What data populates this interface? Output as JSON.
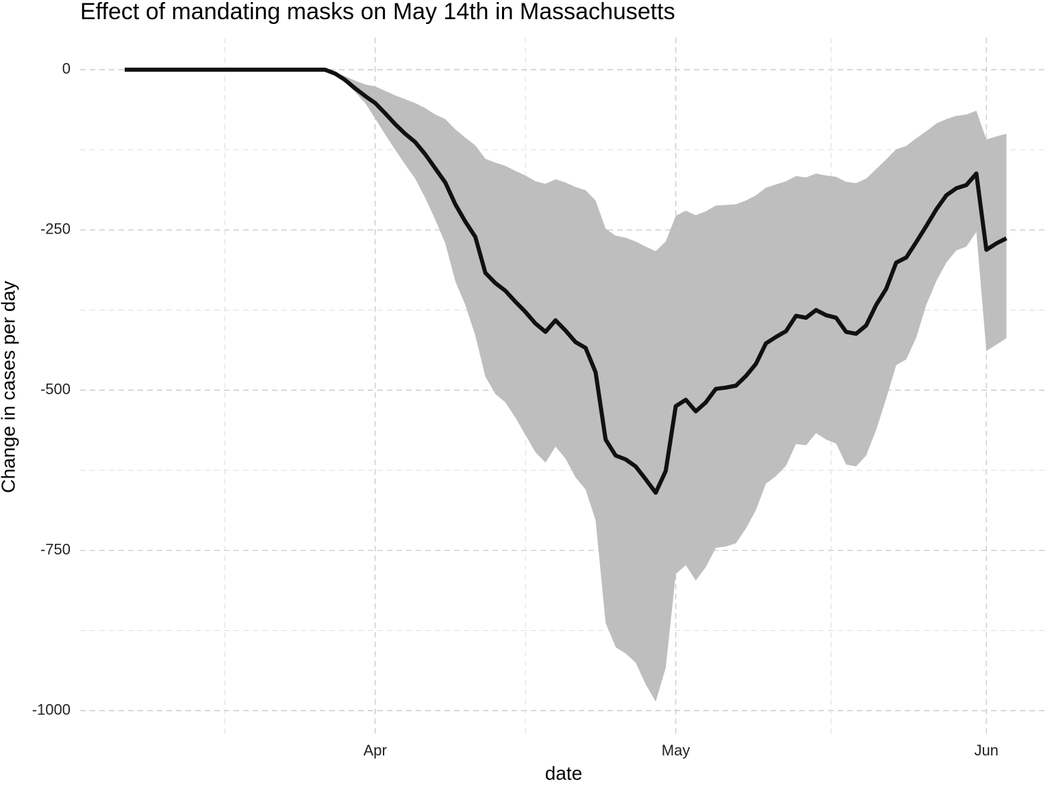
{
  "chart_data": {
    "type": "line",
    "title": "Effect of mandating masks on May 14th in Massachusetts",
    "x_label": "date",
    "y_label": "Change in cases per day",
    "categories": [
      null,
      null,
      null,
      null,
      null,
      null,
      null,
      null,
      null,
      null,
      null,
      null,
      null,
      null,
      null,
      null,
      null,
      null,
      null,
      null,
      null,
      null,
      null,
      null,
      null,
      "Apr",
      null,
      null,
      null,
      null,
      null,
      null,
      null,
      null,
      null,
      null,
      null,
      null,
      null,
      null,
      null,
      null,
      null,
      null,
      null,
      null,
      null,
      null,
      null,
      null,
      null,
      null,
      null,
      null,
      null,
      "May",
      null,
      null,
      null,
      null,
      null,
      null,
      null,
      null,
      null,
      null,
      null,
      null,
      null,
      null,
      null,
      null,
      null,
      null,
      null,
      null,
      null,
      null,
      null,
      null,
      null,
      null,
      null,
      null,
      null,
      null,
      "Jun",
      null,
      null
    ],
    "series": [
      {
        "color": "#111111",
        "values": [
          0,
          0,
          0,
          0,
          0,
          0,
          0,
          0,
          0,
          0,
          0,
          0,
          0,
          0,
          0,
          0,
          0,
          0,
          0,
          0,
          0,
          -6,
          -16,
          -29,
          -41,
          -52,
          -68,
          -85,
          -100,
          -113,
          -132,
          -154,
          -176,
          -210,
          -237,
          -261,
          -317,
          -333,
          -345,
          -362,
          -378,
          -396,
          -409,
          -391,
          -407,
          -425,
          -434,
          -472,
          -577,
          -602,
          -608,
          -619,
          -639,
          -660,
          -626,
          -525,
          -515,
          -533,
          -519,
          -498,
          -496,
          -493,
          -478,
          -459,
          -427,
          -417,
          -408,
          -384,
          -387,
          -375,
          -383,
          -387,
          -409,
          -412,
          -399,
          -367,
          -342,
          -301,
          -293,
          -269,
          -244,
          -218,
          -196,
          -185,
          -180,
          -162,
          -281,
          -271,
          -263
        ]
      }
    ],
    "band": {
      "color": "#bebebe",
      "upper": [
        0,
        0,
        0,
        0,
        0,
        0,
        0,
        0,
        0,
        0,
        0,
        0,
        0,
        0,
        0,
        0,
        0,
        0,
        0,
        0,
        0,
        -4,
        -10,
        -17,
        -23,
        -26,
        -33,
        -40,
        -46,
        -52,
        -60,
        -70,
        -77,
        -93,
        -106,
        -118,
        -139,
        -145,
        -150,
        -158,
        -165,
        -174,
        -178,
        -171,
        -176,
        -183,
        -188,
        -204,
        -248,
        -259,
        -262,
        -268,
        -276,
        -283,
        -268,
        -228,
        -220,
        -227,
        -221,
        -212,
        -211,
        -210,
        -204,
        -196,
        -184,
        -179,
        -174,
        -166,
        -168,
        -162,
        -165,
        -167,
        -175,
        -177,
        -170,
        -155,
        -140,
        -124,
        -119,
        -107,
        -96,
        -84,
        -77,
        -72,
        -70,
        -64,
        -109,
        -104,
        -100
      ],
      "lower": [
        0,
        0,
        0,
        0,
        0,
        0,
        0,
        0,
        0,
        0,
        0,
        0,
        0,
        0,
        0,
        0,
        0,
        0,
        0,
        0,
        0,
        -8,
        -20,
        -35,
        -52,
        -76,
        -101,
        -125,
        -148,
        -170,
        -200,
        -234,
        -271,
        -330,
        -367,
        -415,
        -479,
        -506,
        -519,
        -543,
        -570,
        -597,
        -613,
        -588,
        -607,
        -636,
        -655,
        -703,
        -863,
        -901,
        -911,
        -925,
        -959,
        -986,
        -933,
        -787,
        -773,
        -797,
        -776,
        -746,
        -744,
        -739,
        -716,
        -687,
        -646,
        -634,
        -618,
        -584,
        -586,
        -567,
        -577,
        -583,
        -616,
        -619,
        -602,
        -562,
        -513,
        -461,
        -452,
        -418,
        -367,
        -330,
        -301,
        -282,
        -276,
        -253,
        -439,
        -429,
        -419
      ]
    },
    "ylim": [
      -1040,
      50
    ],
    "yticks": [
      0,
      -250,
      -500,
      -750,
      -1000
    ],
    "grid": true
  }
}
